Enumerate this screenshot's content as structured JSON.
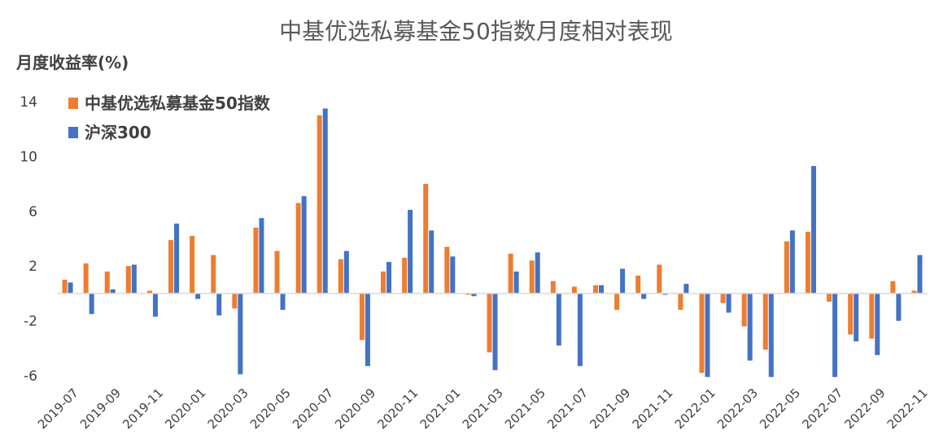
{
  "chart_data": {
    "type": "bar",
    "title": "中基优选私募基金50指数月度相对表现",
    "ylabel": "月度收益率(%)",
    "xlabel": "",
    "ylim": [
      -6,
      14
    ],
    "yticks": [
      14,
      10,
      6,
      2,
      -2,
      -6
    ],
    "grid": false,
    "legend_position": "top-left",
    "categories": [
      "2019-07",
      "2019-08",
      "2019-09",
      "2019-10",
      "2019-11",
      "2019-12",
      "2020-01",
      "2020-02",
      "2020-03",
      "2020-04",
      "2020-05",
      "2020-06",
      "2020-07",
      "2020-08",
      "2020-09",
      "2020-10",
      "2020-11",
      "2020-12",
      "2021-01",
      "2021-02",
      "2021-03",
      "2021-04",
      "2021-05",
      "2021-06",
      "2021-07",
      "2021-08",
      "2021-09",
      "2021-10",
      "2021-11",
      "2021-12",
      "2022-01",
      "2022-02",
      "2022-03",
      "2022-04",
      "2022-05",
      "2022-06",
      "2022-07",
      "2022-08",
      "2022-09",
      "2022-10",
      "2022-11"
    ],
    "xtick_labels": [
      "2019-07",
      "2019-09",
      "2019-11",
      "2020-01",
      "2020-03",
      "2020-05",
      "2020-07",
      "2020-09",
      "2020-11",
      "2021-01",
      "2021-03",
      "2021-05",
      "2021-07",
      "2021-09",
      "2021-11",
      "2022-01",
      "2022-03",
      "2022-05",
      "2022-07",
      "2022-09",
      "2022-11"
    ],
    "series": [
      {
        "name": "中基优选私募基金50指数",
        "color": "#ED7D31",
        "values": [
          1.0,
          2.2,
          1.6,
          2.0,
          0.2,
          3.9,
          4.2,
          2.8,
          -1.1,
          4.8,
          3.1,
          6.6,
          13.0,
          2.5,
          -3.4,
          1.6,
          2.6,
          8.0,
          3.4,
          -0.1,
          -4.3,
          2.9,
          2.4,
          0.9,
          0.5,
          0.6,
          -1.2,
          1.3,
          2.1,
          -1.2,
          -5.8,
          -0.7,
          -2.4,
          -4.1,
          3.8,
          4.5,
          -0.6,
          -3.0,
          -3.3,
          0.9,
          0.2
        ]
      },
      {
        "name": "沪深300",
        "color": "#4472C4",
        "values": [
          0.8,
          -1.5,
          0.3,
          2.1,
          -1.7,
          5.1,
          -0.4,
          -1.6,
          -5.9,
          5.5,
          -1.2,
          7.1,
          13.5,
          3.1,
          -5.3,
          2.3,
          6.1,
          4.6,
          2.7,
          -0.2,
          -5.6,
          1.6,
          3.0,
          -3.8,
          -5.3,
          0.6,
          1.8,
          -0.4,
          -0.1,
          0.7,
          -6.1,
          -1.4,
          -4.9,
          -6.1,
          4.6,
          9.3,
          -6.1,
          -3.5,
          -4.5,
          -2.0,
          2.8
        ]
      }
    ]
  }
}
